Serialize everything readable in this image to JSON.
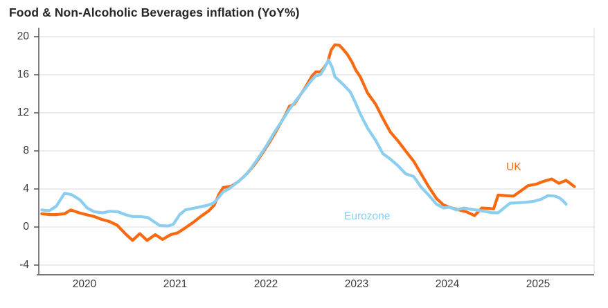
{
  "title": "Food & Non-Alcoholic Beverages inflation (YoY%)",
  "chart_data": {
    "type": "line",
    "title": "Food & Non-Alcoholic Beverages inflation (YoY%)",
    "xlabel": "",
    "ylabel": "",
    "grid": "horizontal-only",
    "legend_position": "inline-annotations",
    "x_axis": {
      "tick_labels": [
        "2020",
        "2021",
        "2022",
        "2023",
        "2024",
        "2025"
      ],
      "tick_years": [
        2020,
        2021,
        2022,
        2023,
        2024,
        2025
      ],
      "range_years": [
        2019.49,
        2025.62
      ]
    },
    "y_axis": {
      "tick_labels": [
        "-4",
        "0",
        "4",
        "8",
        "12",
        "16",
        "20"
      ],
      "ticks": [
        -4,
        0,
        4,
        8,
        12,
        16,
        20
      ],
      "range": [
        -5.0,
        20.9
      ]
    },
    "colors": {
      "uk_orange": "#f96a10",
      "eurozone_blue": "#8bcef0",
      "gridline": "#d9d9d9",
      "y_axis_line": "#4a4a4a",
      "x_axis_line": "#7a7a7a",
      "tick_text": "#3a3a3a",
      "title_text": "#262626"
    },
    "annotations": [
      {
        "text": "UK",
        "series": "UK",
        "color": "#f96a10",
        "x": 2024.73,
        "y": 6.2
      },
      {
        "text": "Eurozone",
        "series": "Eurozone",
        "color": "#8bcef0",
        "x": 2023.18,
        "y": 0.95
      }
    ],
    "series": [
      {
        "name": "UK",
        "color": "#f96a10",
        "points": [
          [
            2019.53,
            1.4
          ],
          [
            2019.61,
            1.3
          ],
          [
            2019.69,
            1.3
          ],
          [
            2019.78,
            1.4
          ],
          [
            2019.85,
            1.8
          ],
          [
            2019.94,
            1.5
          ],
          [
            2020.02,
            1.3
          ],
          [
            2020.11,
            1.1
          ],
          [
            2020.19,
            0.8
          ],
          [
            2020.27,
            0.6
          ],
          [
            2020.36,
            0.2
          ],
          [
            2020.44,
            -0.6
          ],
          [
            2020.53,
            -1.4
          ],
          [
            2020.61,
            -0.7
          ],
          [
            2020.69,
            -1.4
          ],
          [
            2020.78,
            -0.8
          ],
          [
            2020.86,
            -1.3
          ],
          [
            2020.95,
            -0.8
          ],
          [
            2021.03,
            -0.6
          ],
          [
            2021.11,
            -0.1
          ],
          [
            2021.2,
            0.5
          ],
          [
            2021.28,
            1.1
          ],
          [
            2021.37,
            1.7
          ],
          [
            2021.43,
            2.3
          ],
          [
            2021.48,
            3.4
          ],
          [
            2021.53,
            4.15
          ],
          [
            2021.62,
            4.3
          ],
          [
            2021.7,
            4.8
          ],
          [
            2021.79,
            5.6
          ],
          [
            2021.87,
            6.5
          ],
          [
            2021.95,
            7.6
          ],
          [
            2022.04,
            8.9
          ],
          [
            2022.12,
            10.2
          ],
          [
            2022.21,
            11.7
          ],
          [
            2022.26,
            12.7
          ],
          [
            2022.31,
            12.9
          ],
          [
            2022.34,
            13.3
          ],
          [
            2022.43,
            14.6
          ],
          [
            2022.51,
            15.9
          ],
          [
            2022.55,
            16.3
          ],
          [
            2022.6,
            16.3
          ],
          [
            2022.63,
            16.6
          ],
          [
            2022.68,
            17.3
          ],
          [
            2022.72,
            18.6
          ],
          [
            2022.76,
            19.15
          ],
          [
            2022.81,
            19.1
          ],
          [
            2022.85,
            18.7
          ],
          [
            2022.9,
            18.1
          ],
          [
            2022.95,
            17.3
          ],
          [
            2022.99,
            16.5
          ],
          [
            2023.04,
            15.8
          ],
          [
            2023.12,
            14.1
          ],
          [
            2023.21,
            12.9
          ],
          [
            2023.29,
            11.4
          ],
          [
            2023.37,
            10.0
          ],
          [
            2023.46,
            9.0
          ],
          [
            2023.54,
            8.0
          ],
          [
            2023.63,
            6.9
          ],
          [
            2023.71,
            5.6
          ],
          [
            2023.79,
            4.3
          ],
          [
            2023.88,
            3.0
          ],
          [
            2023.96,
            2.3
          ],
          [
            2024.05,
            2.0
          ],
          [
            2024.13,
            1.8
          ],
          [
            2024.21,
            1.6
          ],
          [
            2024.3,
            1.2
          ],
          [
            2024.38,
            2.0
          ],
          [
            2024.47,
            1.95
          ],
          [
            2024.51,
            1.9
          ],
          [
            2024.56,
            3.35
          ],
          [
            2024.64,
            3.3
          ],
          [
            2024.73,
            3.25
          ],
          [
            2024.81,
            3.8
          ],
          [
            2024.89,
            4.35
          ],
          [
            2024.98,
            4.5
          ],
          [
            2025.06,
            4.8
          ],
          [
            2025.15,
            5.05
          ],
          [
            2025.23,
            4.6
          ],
          [
            2025.31,
            4.9
          ],
          [
            2025.4,
            4.25
          ]
        ]
      },
      {
        "name": "Eurozone",
        "color": "#8bcef0",
        "points": [
          [
            2019.53,
            1.8
          ],
          [
            2019.61,
            1.7
          ],
          [
            2019.69,
            2.2
          ],
          [
            2019.78,
            3.55
          ],
          [
            2019.86,
            3.4
          ],
          [
            2019.95,
            2.85
          ],
          [
            2020.03,
            2.0
          ],
          [
            2020.11,
            1.6
          ],
          [
            2020.2,
            1.5
          ],
          [
            2020.28,
            1.65
          ],
          [
            2020.37,
            1.6
          ],
          [
            2020.45,
            1.3
          ],
          [
            2020.53,
            1.1
          ],
          [
            2020.62,
            1.1
          ],
          [
            2020.7,
            1.0
          ],
          [
            2020.76,
            0.6
          ],
          [
            2020.83,
            0.15
          ],
          [
            2020.92,
            0.1
          ],
          [
            2020.98,
            0.3
          ],
          [
            2021.05,
            1.3
          ],
          [
            2021.11,
            1.8
          ],
          [
            2021.19,
            1.95
          ],
          [
            2021.27,
            2.1
          ],
          [
            2021.36,
            2.3
          ],
          [
            2021.42,
            2.5
          ],
          [
            2021.47,
            3.0
          ],
          [
            2021.53,
            3.7
          ],
          [
            2021.59,
            4.0
          ],
          [
            2021.67,
            4.6
          ],
          [
            2021.76,
            5.3
          ],
          [
            2021.84,
            6.2
          ],
          [
            2021.92,
            7.3
          ],
          [
            2022.01,
            8.6
          ],
          [
            2022.09,
            9.9
          ],
          [
            2022.18,
            11.2
          ],
          [
            2022.26,
            12.4
          ],
          [
            2022.34,
            13.4
          ],
          [
            2022.43,
            14.5
          ],
          [
            2022.51,
            15.5
          ],
          [
            2022.55,
            15.9
          ],
          [
            2022.6,
            16.0
          ],
          [
            2022.64,
            16.6
          ],
          [
            2022.69,
            17.55
          ],
          [
            2022.73,
            16.8
          ],
          [
            2022.76,
            15.8
          ],
          [
            2022.85,
            15.0
          ],
          [
            2022.93,
            14.2
          ],
          [
            2022.98,
            13.2
          ],
          [
            2023.04,
            11.9
          ],
          [
            2023.12,
            10.4
          ],
          [
            2023.21,
            9.1
          ],
          [
            2023.29,
            7.7
          ],
          [
            2023.37,
            7.15
          ],
          [
            2023.46,
            6.4
          ],
          [
            2023.54,
            5.6
          ],
          [
            2023.63,
            5.3
          ],
          [
            2023.71,
            4.2
          ],
          [
            2023.79,
            3.4
          ],
          [
            2023.88,
            2.4
          ],
          [
            2023.96,
            2.0
          ],
          [
            2024.02,
            2.1
          ],
          [
            2024.1,
            1.8
          ],
          [
            2024.18,
            2.0
          ],
          [
            2024.27,
            1.85
          ],
          [
            2024.35,
            1.75
          ],
          [
            2024.44,
            1.6
          ],
          [
            2024.49,
            1.5
          ],
          [
            2024.56,
            1.5
          ],
          [
            2024.65,
            2.2
          ],
          [
            2024.69,
            2.5
          ],
          [
            2024.78,
            2.55
          ],
          [
            2024.86,
            2.6
          ],
          [
            2024.95,
            2.7
          ],
          [
            2025.03,
            2.9
          ],
          [
            2025.11,
            3.3
          ],
          [
            2025.18,
            3.25
          ],
          [
            2025.23,
            3.1
          ],
          [
            2025.27,
            2.8
          ],
          [
            2025.31,
            2.4
          ]
        ]
      }
    ]
  }
}
